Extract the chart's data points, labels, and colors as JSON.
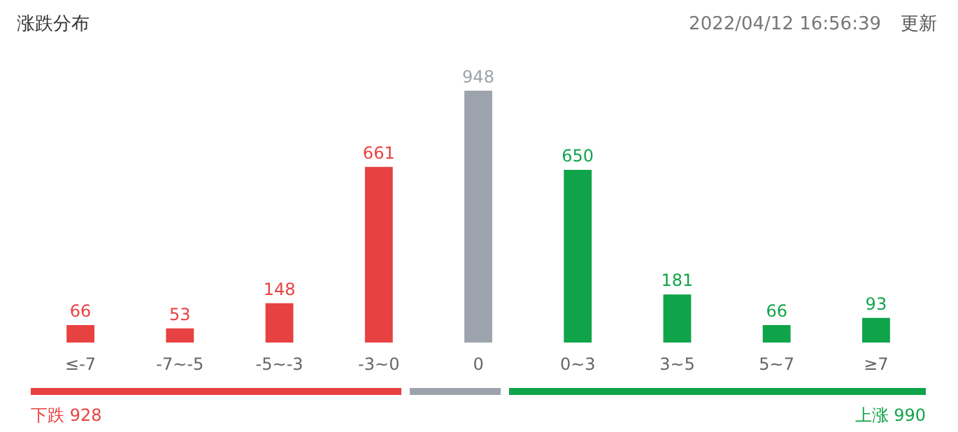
{
  "chart_data": {
    "type": "bar",
    "title": "涨跌分布",
    "categories": [
      "≤-7",
      "-7~-5",
      "-5~-3",
      "-3~0",
      "0",
      "0~3",
      "3~5",
      "5~7",
      "≥7"
    ],
    "values": [
      66,
      53,
      148,
      661,
      948,
      650,
      181,
      66,
      93
    ],
    "colors": [
      "#e84142",
      "#e84142",
      "#e84142",
      "#e84142",
      "#9ca3ac",
      "#10a44a",
      "#10a44a",
      "#10a44a",
      "#10a44a"
    ],
    "data_labels": true,
    "annotations": [
      "2022/04/12 16:56:39",
      "更新",
      "下跌 928",
      "上涨 990"
    ]
  }
}
